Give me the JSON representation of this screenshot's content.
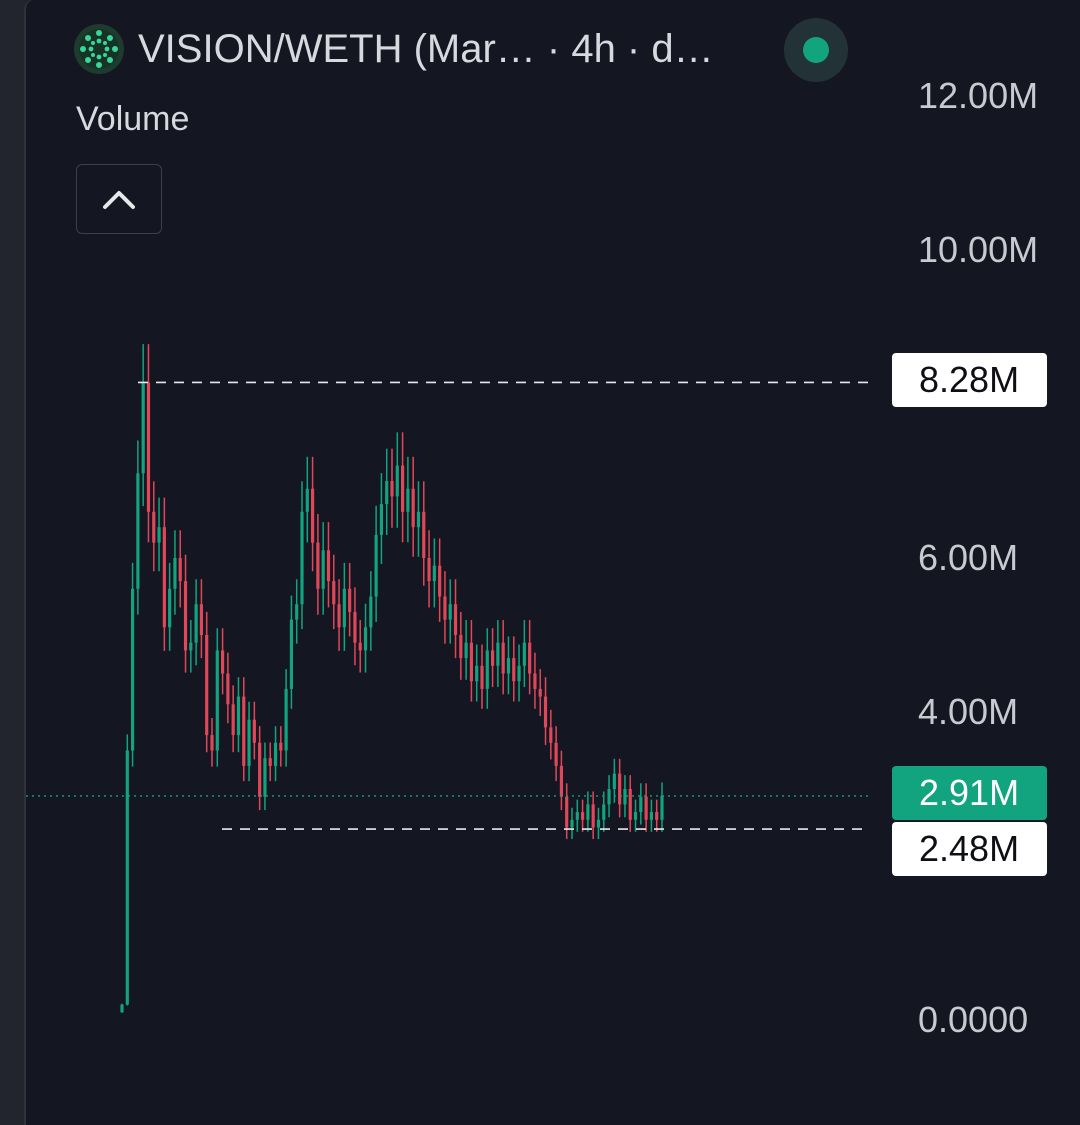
{
  "header": {
    "title": "VISION/WETH (Mar… · 4h · d…"
  },
  "indicator": {
    "label": "Volume"
  },
  "icons": {
    "logo": "vision-token-logo",
    "status": "live-status-dot",
    "collapse": "chevron-up-icon"
  },
  "colors": {
    "background": "#141722",
    "up": "#12a37f",
    "down": "#e0485a",
    "accent_green": "#12a37f"
  },
  "chart_data": {
    "type": "candlestick",
    "y_ticks": [
      "12.00M",
      "10.00M",
      "6.00M",
      "4.00M",
      "0.0000"
    ],
    "ylim": [
      0,
      12000000
    ],
    "markers": {
      "high": {
        "value": 8280000,
        "label": "8.28M"
      },
      "low": {
        "value": 2480000,
        "label": "2.48M"
      },
      "current": {
        "value": 2910000,
        "label": "2.91M"
      }
    },
    "series": [
      {
        "name": "",
        "close": [
          0.2,
          3.5,
          5.6,
          7.1,
          8.28,
          6.6,
          6.2,
          6.4,
          5.1,
          5.6,
          6.0,
          5.7,
          4.8,
          4.9,
          5.4,
          5.0,
          3.7,
          3.5,
          4.8,
          4.5,
          4.1,
          3.7,
          4.2,
          3.3,
          3.9,
          3.6,
          2.9,
          3.4,
          3.3,
          3.6,
          3.5,
          4.3,
          5.2,
          5.4,
          6.6,
          6.9,
          6.2,
          5.6,
          6.1,
          5.7,
          5.4,
          5.1,
          5.6,
          5.3,
          4.9,
          4.8,
          5.1,
          5.5,
          6.3,
          6.7,
          7.0,
          6.8,
          7.2,
          6.6,
          6.9,
          6.4,
          6.6,
          6.0,
          5.7,
          5.9,
          5.5,
          5.2,
          5.4,
          5.0,
          4.7,
          4.9,
          4.4,
          4.6,
          4.3,
          4.8,
          4.6,
          4.9,
          4.5,
          4.7,
          4.4,
          4.6,
          4.9,
          4.5,
          4.3,
          4.2,
          3.8,
          3.6,
          3.3,
          2.9,
          2.5,
          2.6,
          2.7,
          2.6,
          2.8,
          2.5,
          2.6,
          2.8,
          3.0,
          3.2,
          2.8,
          3.0,
          2.6,
          2.7,
          2.9,
          2.6,
          2.7,
          2.6,
          2.91
        ]
      }
    ]
  }
}
